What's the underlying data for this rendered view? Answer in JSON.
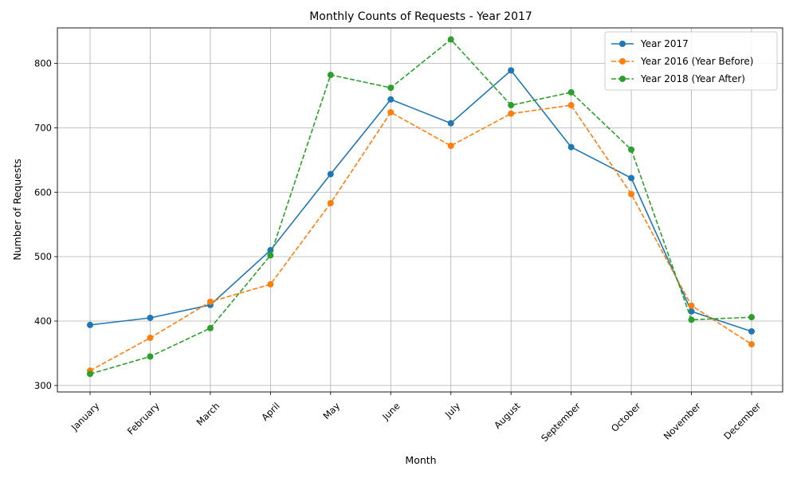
{
  "chart_data": {
    "type": "line",
    "title": "Monthly Counts of Requests - Year 2017",
    "xlabel": "Month",
    "ylabel": "Number of Requests",
    "categories": [
      "January",
      "February",
      "March",
      "April",
      "May",
      "June",
      "July",
      "August",
      "September",
      "October",
      "November",
      "December"
    ],
    "ylim": [
      290,
      855
    ],
    "yticks": [
      300,
      400,
      500,
      600,
      700,
      800
    ],
    "grid": true,
    "legend_position": "top-right",
    "series": [
      {
        "name": "Year 2017",
        "color": "#1f77b4",
        "style": "solid",
        "values": [
          394,
          405,
          425,
          510,
          628,
          744,
          707,
          789,
          670,
          622,
          415,
          384
        ]
      },
      {
        "name": "Year 2016 (Year Before)",
        "color": "#ff7f0e",
        "style": "dashed",
        "values": [
          323,
          374,
          430,
          457,
          583,
          724,
          672,
          722,
          735,
          597,
          424,
          364
        ]
      },
      {
        "name": "Year 2018 (Year After)",
        "color": "#2ca02c",
        "style": "dashed",
        "values": [
          318,
          345,
          389,
          502,
          782,
          762,
          837,
          735,
          755,
          666,
          402,
          406
        ]
      }
    ]
  }
}
